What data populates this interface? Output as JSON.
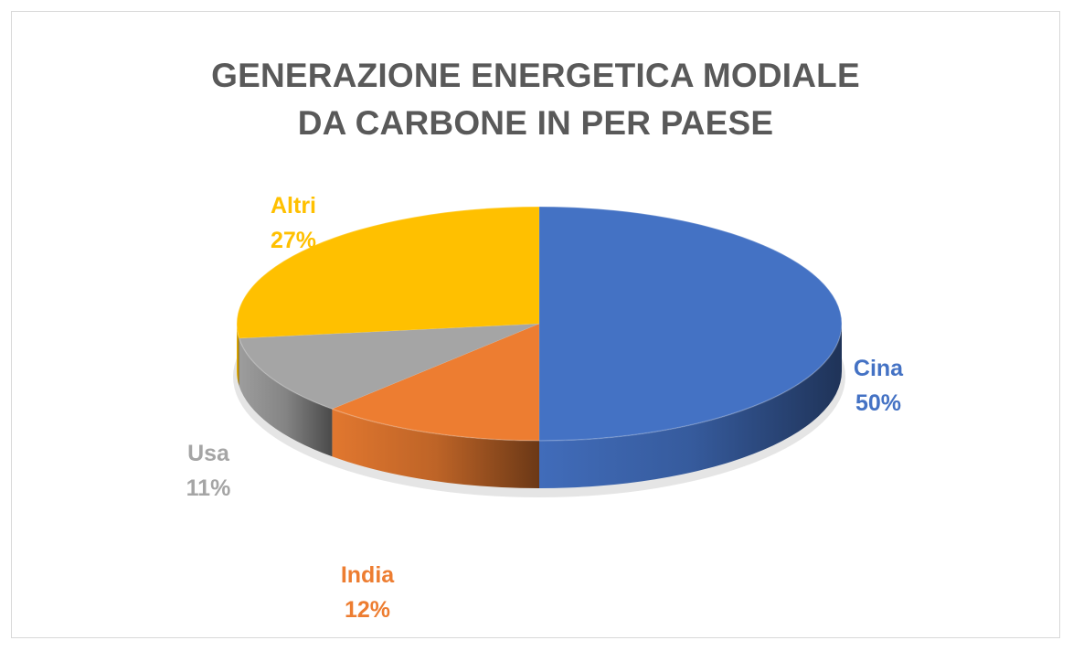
{
  "chart_data": {
    "type": "pie",
    "style": "3d",
    "title": [
      "GENERAZIONE ENERGETICA MODIALE",
      "DA CARBONE IN PER PAESE"
    ],
    "legend": "none",
    "slices": [
      {
        "label": "Cina",
        "value": 50,
        "value_label": "50%",
        "color": "#4472C4"
      },
      {
        "label": "India",
        "value": 12,
        "value_label": "12%",
        "color": "#ED7D31"
      },
      {
        "label": "Usa",
        "value": 11,
        "value_label": "11%",
        "color": "#A5A5A5"
      },
      {
        "label": "Altri",
        "value": 27,
        "value_label": "27%",
        "color": "#FFC000"
      }
    ]
  }
}
